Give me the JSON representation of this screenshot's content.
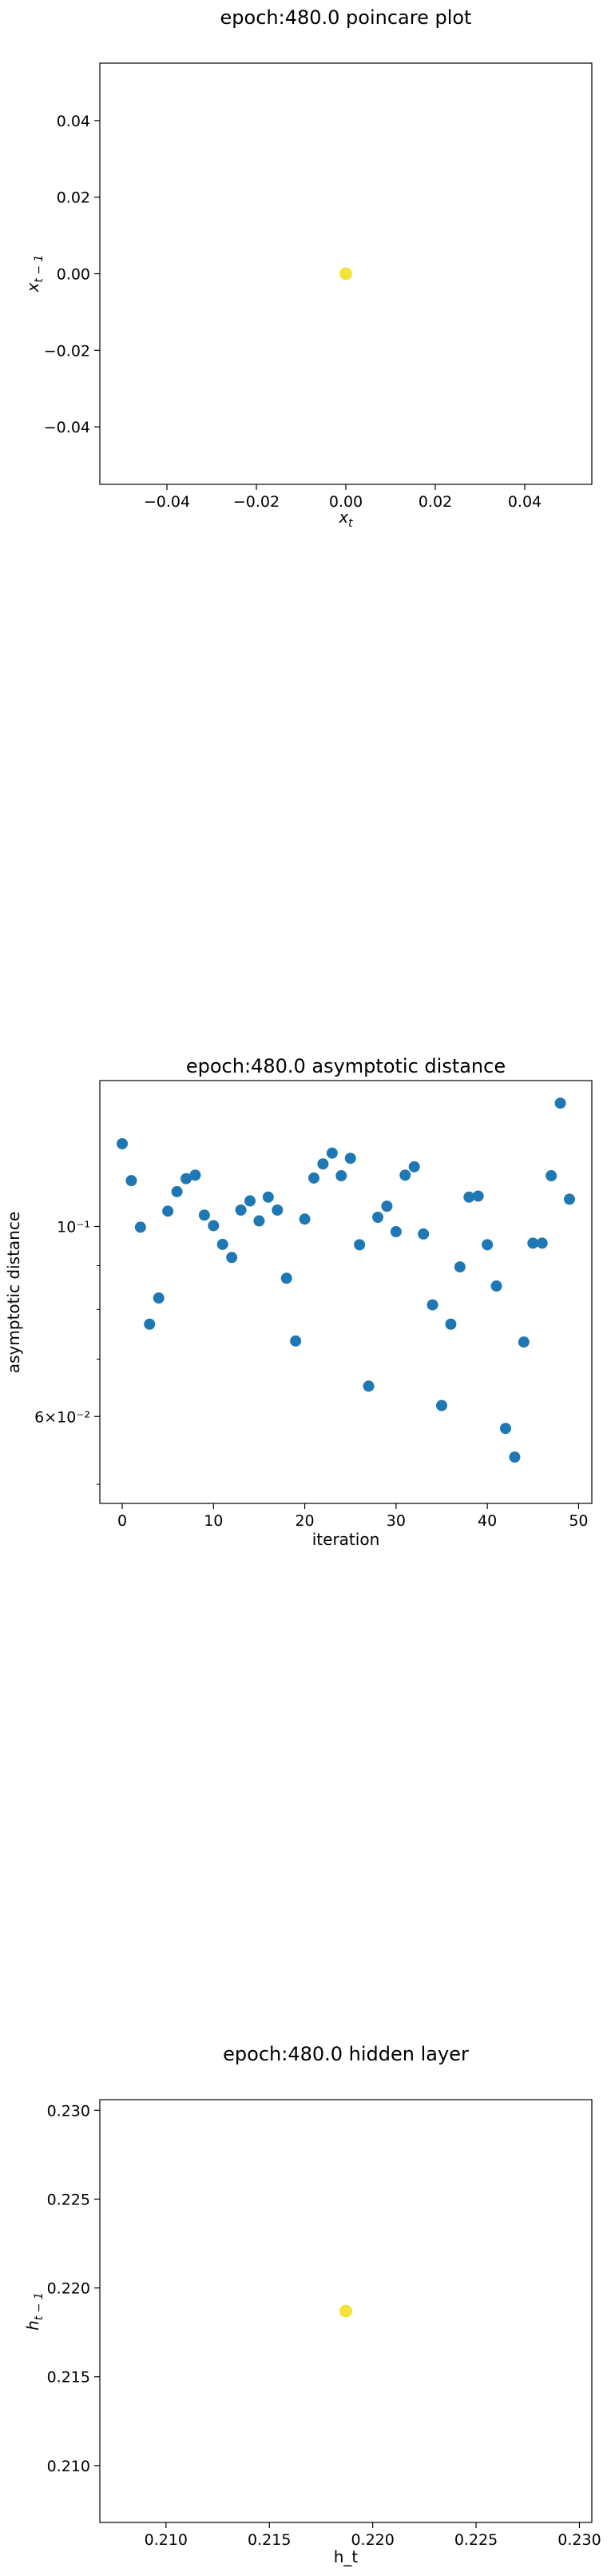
{
  "chart_data": [
    {
      "type": "scatter",
      "title": "epoch:480.0 poincare plot",
      "xlabel": "x_t",
      "ylabel": "x_{t-1}",
      "xlim": [
        -0.055,
        0.055
      ],
      "ylim": [
        -0.055,
        0.055
      ],
      "x_ticks": [
        "−0.04",
        "−0.02",
        "0.00",
        "0.02",
        "0.04"
      ],
      "x_tick_values": [
        -0.04,
        -0.02,
        0.0,
        0.02,
        0.04
      ],
      "y_ticks": [
        "0.04",
        "0.02",
        "0.00",
        "−0.02",
        "−0.04"
      ],
      "y_tick_values": [
        0.04,
        0.02,
        0.0,
        -0.02,
        -0.04
      ],
      "color": "#f2e33a",
      "points": [
        [
          0.0,
          0.0
        ]
      ]
    },
    {
      "type": "scatter",
      "title": "epoch:480.0 asymptotic distance",
      "xlabel": "iteration",
      "ylabel": "asymptotic distance",
      "y_scale": "log",
      "xlim": [
        -2.45,
        51.45
      ],
      "ylim": [
        0.0475,
        0.148
      ],
      "x_ticks": [
        "0",
        "10",
        "20",
        "30",
        "40",
        "50"
      ],
      "x_tick_values": [
        0,
        10,
        20,
        30,
        40,
        50
      ],
      "y_ticks": [
        "10⁻¹",
        "6×10⁻²"
      ],
      "y_tick_values": [
        0.1,
        0.06
      ],
      "color": "#1f77b4",
      "x": [
        0,
        1,
        2,
        3,
        4,
        5,
        6,
        7,
        8,
        9,
        10,
        11,
        12,
        13,
        14,
        15,
        16,
        17,
        18,
        19,
        20,
        21,
        22,
        23,
        24,
        25,
        26,
        27,
        28,
        29,
        30,
        31,
        32,
        33,
        34,
        35,
        36,
        37,
        38,
        39,
        40,
        41,
        42,
        43,
        44,
        45,
        46,
        47,
        48,
        49
      ],
      "y": [
        0.1249,
        0.1131,
        0.0998,
        0.0769,
        0.0825,
        0.1042,
        0.1098,
        0.1137,
        0.1148,
        0.1031,
        0.1002,
        0.0953,
        0.092,
        0.1045,
        0.1071,
        0.1015,
        0.1082,
        0.1045,
        0.087,
        0.0735,
        0.102,
        0.1139,
        0.1183,
        0.1218,
        0.1146,
        0.1201,
        0.0952,
        0.0651,
        0.1025,
        0.1056,
        0.0986,
        0.1148,
        0.1174,
        0.098,
        0.081,
        0.0618,
        0.0769,
        0.0897,
        0.1082,
        0.1085,
        0.0952,
        0.0852,
        0.0581,
        0.0538,
        0.0733,
        0.0956,
        0.0956,
        0.1146,
        0.1393,
        0.1076
      ]
    },
    {
      "type": "scatter",
      "title": "epoch:480.0 hidden layer",
      "xlabel": "h_t",
      "ylabel": "h_{t-1}",
      "xlim": [
        0.2068,
        0.2306
      ],
      "ylim": [
        0.2068,
        0.2306
      ],
      "x_ticks": [
        "0.210",
        "0.215",
        "0.220",
        "0.225",
        "0.230"
      ],
      "x_tick_values": [
        0.21,
        0.215,
        0.22,
        0.225,
        0.23
      ],
      "y_ticks": [
        "0.230",
        "0.225",
        "0.220",
        "0.215",
        "0.210"
      ],
      "y_tick_values": [
        0.23,
        0.225,
        0.22,
        0.215,
        0.21
      ],
      "color": "#f2e33a",
      "points": [
        [
          0.2187,
          0.2187
        ]
      ]
    }
  ]
}
